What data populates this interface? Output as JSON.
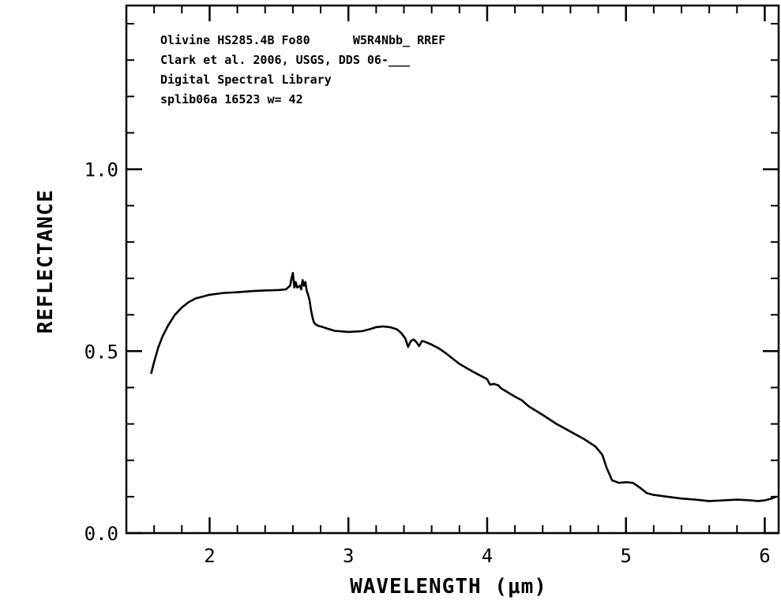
{
  "chart_data": {
    "type": "line",
    "annotations": [
      "Olivine HS285.4B Fo80      W5R4Nbb_ RREF",
      "Clark et al. 2006, USGS, DDS 06-___",
      "Digital Spectral Library",
      "splib06a 16523 w= 42"
    ],
    "xlabel": "WAVELENGTH (μm)",
    "ylabel": "REFLECTANCE",
    "xlim": [
      1.4,
      6.1
    ],
    "ylim": [
      0.0,
      1.45
    ],
    "x_ticks": [
      {
        "value": 2,
        "label": "2"
      },
      {
        "value": 3,
        "label": "3"
      },
      {
        "value": 4,
        "label": "4"
      },
      {
        "value": 5,
        "label": "5"
      },
      {
        "value": 6,
        "label": "6"
      }
    ],
    "y_ticks": [
      {
        "value": 0.0,
        "label": "0.0"
      },
      {
        "value": 0.5,
        "label": "0.5"
      },
      {
        "value": 1.0,
        "label": "1.0"
      }
    ],
    "x_minor_step": 0.2,
    "y_minor_step": 0.1,
    "grid": false,
    "series": [
      {
        "color": "#000000",
        "points": [
          [
            1.58,
            0.44
          ],
          [
            1.6,
            0.47
          ],
          [
            1.63,
            0.51
          ],
          [
            1.66,
            0.54
          ],
          [
            1.7,
            0.57
          ],
          [
            1.75,
            0.6
          ],
          [
            1.8,
            0.62
          ],
          [
            1.85,
            0.635
          ],
          [
            1.9,
            0.645
          ],
          [
            1.95,
            0.65
          ],
          [
            2.0,
            0.655
          ],
          [
            2.1,
            0.66
          ],
          [
            2.2,
            0.662
          ],
          [
            2.3,
            0.665
          ],
          [
            2.4,
            0.667
          ],
          [
            2.5,
            0.668
          ],
          [
            2.55,
            0.67
          ],
          [
            2.58,
            0.68
          ],
          [
            2.59,
            0.7
          ],
          [
            2.6,
            0.715
          ],
          [
            2.61,
            0.675
          ],
          [
            2.62,
            0.69
          ],
          [
            2.63,
            0.675
          ],
          [
            2.65,
            0.68
          ],
          [
            2.66,
            0.67
          ],
          [
            2.67,
            0.695
          ],
          [
            2.68,
            0.68
          ],
          [
            2.69,
            0.69
          ],
          [
            2.7,
            0.665
          ],
          [
            2.71,
            0.655
          ],
          [
            2.72,
            0.64
          ],
          [
            2.73,
            0.615
          ],
          [
            2.74,
            0.595
          ],
          [
            2.75,
            0.58
          ],
          [
            2.76,
            0.575
          ],
          [
            2.78,
            0.57
          ],
          [
            2.8,
            0.568
          ],
          [
            2.85,
            0.562
          ],
          [
            2.9,
            0.556
          ],
          [
            3.0,
            0.553
          ],
          [
            3.1,
            0.555
          ],
          [
            3.15,
            0.56
          ],
          [
            3.2,
            0.566
          ],
          [
            3.25,
            0.568
          ],
          [
            3.3,
            0.566
          ],
          [
            3.35,
            0.56
          ],
          [
            3.38,
            0.55
          ],
          [
            3.41,
            0.535
          ],
          [
            3.43,
            0.512
          ],
          [
            3.45,
            0.528
          ],
          [
            3.47,
            0.532
          ],
          [
            3.49,
            0.525
          ],
          [
            3.51,
            0.514
          ],
          [
            3.53,
            0.528
          ],
          [
            3.55,
            0.526
          ],
          [
            3.6,
            0.518
          ],
          [
            3.65,
            0.508
          ],
          [
            3.7,
            0.495
          ],
          [
            3.8,
            0.465
          ],
          [
            3.9,
            0.443
          ],
          [
            3.95,
            0.433
          ],
          [
            4.0,
            0.423
          ],
          [
            4.02,
            0.408
          ],
          [
            4.05,
            0.41
          ],
          [
            4.08,
            0.406
          ],
          [
            4.1,
            0.398
          ],
          [
            4.2,
            0.375
          ],
          [
            4.25,
            0.365
          ],
          [
            4.3,
            0.348
          ],
          [
            4.4,
            0.325
          ],
          [
            4.5,
            0.3
          ],
          [
            4.6,
            0.279
          ],
          [
            4.7,
            0.258
          ],
          [
            4.78,
            0.238
          ],
          [
            4.83,
            0.215
          ],
          [
            4.86,
            0.18
          ],
          [
            4.9,
            0.145
          ],
          [
            4.95,
            0.138
          ],
          [
            5.0,
            0.14
          ],
          [
            5.05,
            0.138
          ],
          [
            5.1,
            0.125
          ],
          [
            5.15,
            0.11
          ],
          [
            5.2,
            0.105
          ],
          [
            5.3,
            0.1
          ],
          [
            5.4,
            0.095
          ],
          [
            5.5,
            0.092
          ],
          [
            5.6,
            0.088
          ],
          [
            5.7,
            0.09
          ],
          [
            5.8,
            0.092
          ],
          [
            5.9,
            0.09
          ],
          [
            5.95,
            0.088
          ],
          [
            6.0,
            0.09
          ],
          [
            6.05,
            0.095
          ],
          [
            6.08,
            0.1
          ]
        ]
      }
    ]
  }
}
